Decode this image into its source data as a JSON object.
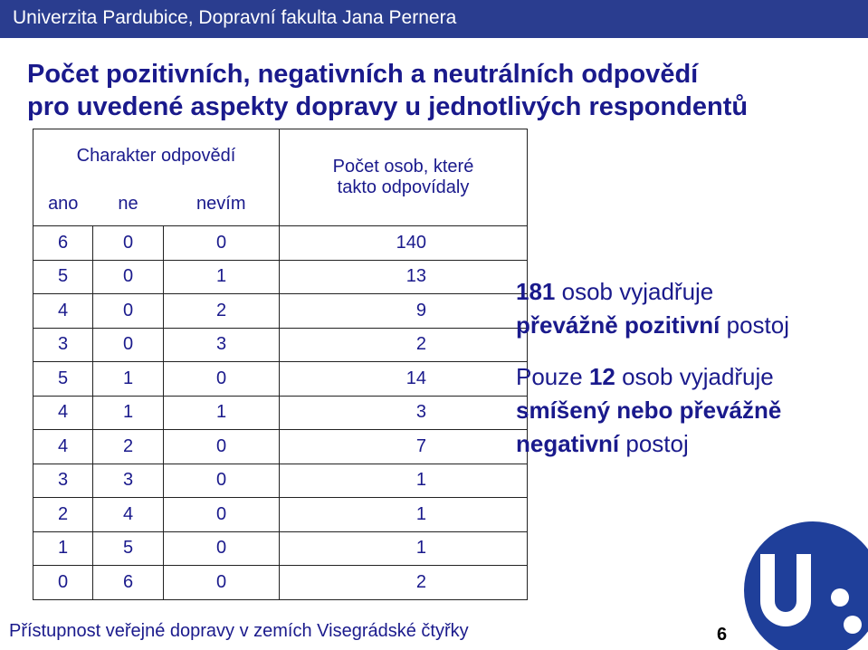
{
  "header": {
    "text": "Univerzita Pardubice, Dopravní fakulta Jana Pernera"
  },
  "title": {
    "line1": "Počet pozitivních, negativních a neutrálních odpovědí",
    "line2": "pro uvedené aspekty dopravy u jednotlivých respondentů"
  },
  "table": {
    "group_header": "Charakter odpovědí",
    "right_header_line1": "Počet osob, které",
    "right_header_line2": "takto odpovídaly",
    "columns": [
      "ano",
      "ne",
      "nevím"
    ],
    "rows": [
      [
        "6",
        "0",
        "0",
        "140"
      ],
      [
        "5",
        "0",
        "1",
        "13"
      ],
      [
        "4",
        "0",
        "2",
        "9"
      ],
      [
        "3",
        "0",
        "3",
        "2"
      ],
      [
        "5",
        "1",
        "0",
        "14"
      ],
      [
        "4",
        "1",
        "1",
        "3"
      ],
      [
        "4",
        "2",
        "0",
        "7"
      ],
      [
        "3",
        "3",
        "0",
        "1"
      ],
      [
        "2",
        "4",
        "0",
        "1"
      ],
      [
        "1",
        "5",
        "0",
        "1"
      ],
      [
        "0",
        "6",
        "0",
        "2"
      ]
    ]
  },
  "summary": {
    "p1_num": "181",
    "p1_text1": " osob vyjadřuje",
    "p1_bold": "převážně pozitivní",
    "p1_text2": " postoj",
    "p2_text1": "Pouze ",
    "p2_num": "12",
    "p2_text2": " osob vyjadřuje",
    "p2_bold1": "smíšený nebo převážně",
    "p2_bold2": "negativní",
    "p2_text3": " postoj"
  },
  "footer": {
    "text": "Přístupnost veřejné dopravy v zemích Visegrádské čtyřky",
    "page": "6"
  },
  "colors": {
    "header_bg": "#2a3d8f",
    "text": "#1a1a8c",
    "logo": "#1f3f9a"
  }
}
